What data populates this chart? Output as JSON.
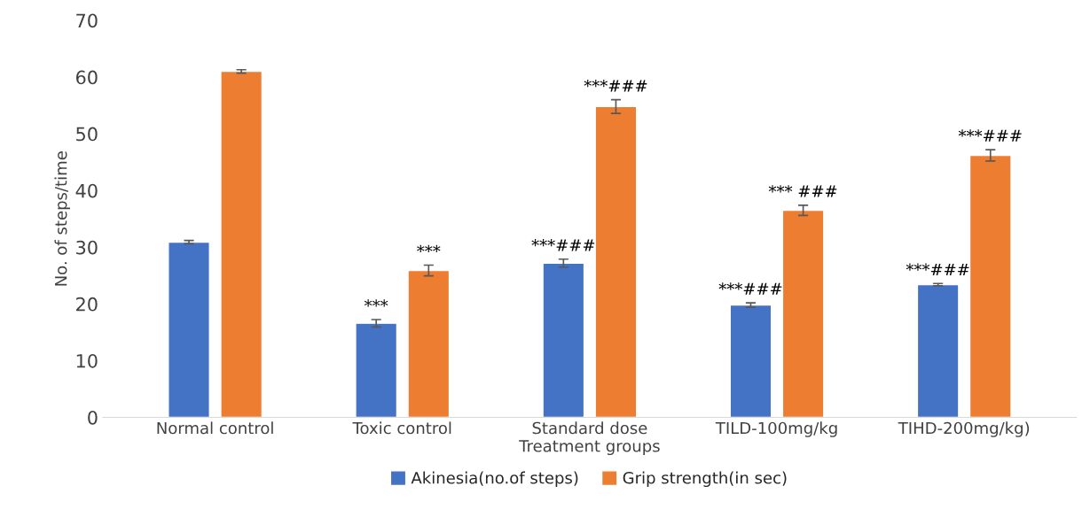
{
  "chart_data": {
    "type": "bar",
    "xlabel": "Treatment groups",
    "ylabel": "No. of steps/time",
    "categories": [
      "Normal control",
      "Toxic control",
      "Standard dose",
      "TILD-100mg/kg",
      "TIHD-200mg/kg)"
    ],
    "series": [
      {
        "name": "Akinesia(no.of steps)",
        "color": "#4472c4",
        "values": [
          30.9,
          16.6,
          27.2,
          19.8,
          23.4
        ],
        "errors": [
          0.3,
          0.65,
          0.7,
          0.4,
          0.2
        ],
        "value_labels": [
          null,
          "***",
          "***###",
          "***###",
          "***###"
        ]
      },
      {
        "name": "Grip strength(in sec)",
        "color": "#ed7d31",
        "values": [
          61.0,
          25.9,
          54.8,
          36.5,
          46.2
        ],
        "errors": [
          0.3,
          0.95,
          1.2,
          0.9,
          1.0
        ],
        "value_labels": [
          null,
          "***",
          "***###",
          "*** ###",
          "***###"
        ]
      }
    ],
    "ylim": [
      0,
      70
    ],
    "yticks": [
      0,
      10,
      20,
      30,
      40,
      50,
      60,
      70
    ],
    "grid": false,
    "legend": "bottom"
  }
}
